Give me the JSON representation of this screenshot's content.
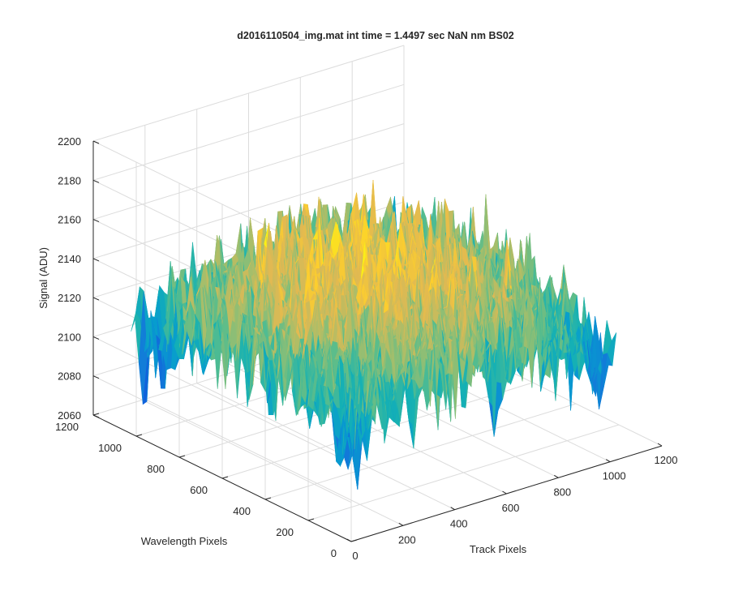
{
  "chart_data": {
    "type": "surface",
    "title": "d2016110504_img.mat int time = 1.4497 sec  NaN nm BS02",
    "xlabel": "Track Pixels",
    "ylabel": "Wavelength Pixels",
    "zlabel": "Signal (ADU)",
    "xlim": [
      0,
      1200
    ],
    "ylim": [
      0,
      1200
    ],
    "zlim": [
      2060,
      2200
    ],
    "xticks": [
      "0",
      "200",
      "400",
      "600",
      "800",
      "1000",
      "1200"
    ],
    "yticks": [
      "0",
      "200",
      "400",
      "600",
      "800",
      "1000",
      "1200"
    ],
    "zticks": [
      "2060",
      "2080",
      "2100",
      "2120",
      "2140",
      "2160",
      "2180",
      "2200"
    ],
    "grid": true,
    "surface": {
      "x_range": [
        0,
        1024
      ],
      "y_range": [
        0,
        1024
      ],
      "z_mean_center": 2148,
      "z_mean_edge": 2110,
      "z_noise": 18,
      "colormap": "parula"
    }
  }
}
